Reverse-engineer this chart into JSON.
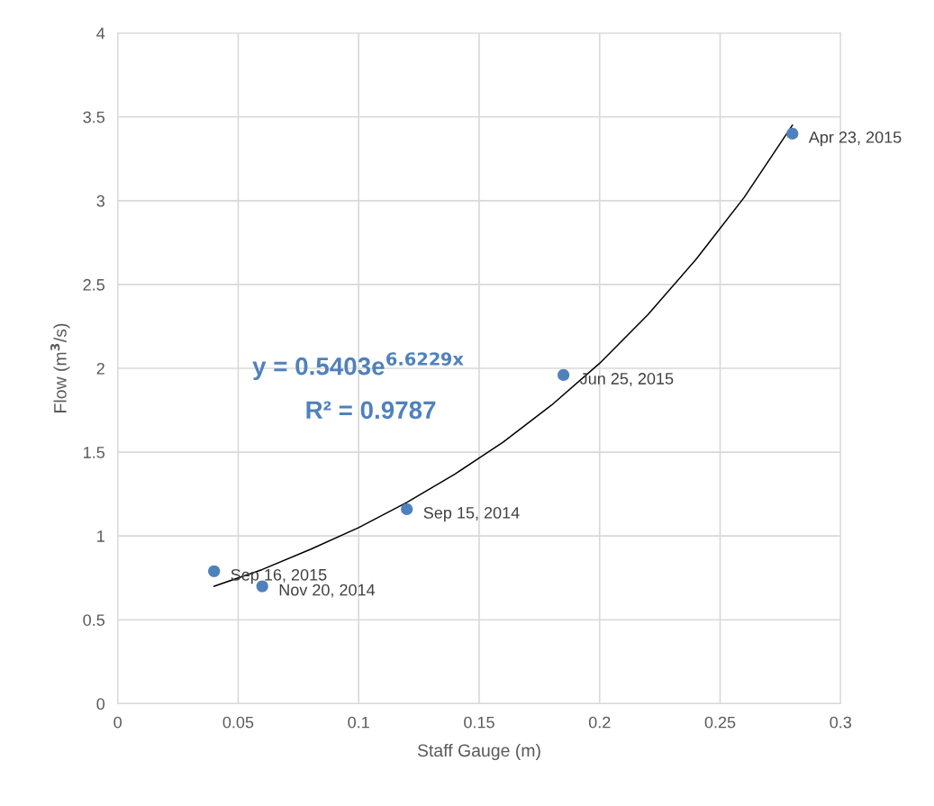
{
  "chart_data": {
    "type": "scatter",
    "xlabel": "Staff Gauge (m)",
    "ylabel": "Flow (m$^{3}$/s)",
    "xlim": [
      0,
      0.3
    ],
    "xticks": [
      0,
      0.05,
      0.1,
      0.15,
      0.2,
      0.25,
      0.3
    ],
    "ylim": [
      0,
      4
    ],
    "yticks": [
      0,
      0.5,
      1,
      1.5,
      2,
      2.5,
      3,
      3.5,
      4
    ],
    "grid": true,
    "series": [
      {
        "marker": "circle",
        "color": "#4f81bd",
        "x": [
          0.04,
          0.06,
          0.12,
          0.185,
          0.28
        ],
        "values": [
          0.79,
          0.7,
          1.16,
          1.96,
          3.4
        ]
      },
      {
        "type": "line",
        "marker": "none",
        "color": "#000000",
        "x": [
          0.04,
          0.06,
          0.08,
          0.1,
          0.12,
          0.14,
          0.16,
          0.18,
          0.2,
          0.22,
          0.24,
          0.26,
          0.28
        ],
        "values": [
          0.7,
          0.8,
          0.92,
          1.05,
          1.2,
          1.37,
          1.56,
          1.78,
          2.03,
          2.32,
          2.65,
          3.02,
          3.45
        ]
      }
    ],
    "annotations": [
      {
        "text": "Sep 16, 2015",
        "x": 0.04,
        "y": 0.79
      },
      {
        "text": "Nov 20, 2014",
        "x": 0.06,
        "y": 0.7
      },
      {
        "text": "Sep 15, 2014",
        "x": 0.12,
        "y": 1.16
      },
      {
        "text": "Jun 25, 2015",
        "x": 0.185,
        "y": 1.96
      },
      {
        "text": "Apr 23, 2015",
        "x": 0.28,
        "y": 3.4
      },
      "y = 0.5403e$^{6.6229x}$",
      "R² = 0.9787"
    ]
  }
}
